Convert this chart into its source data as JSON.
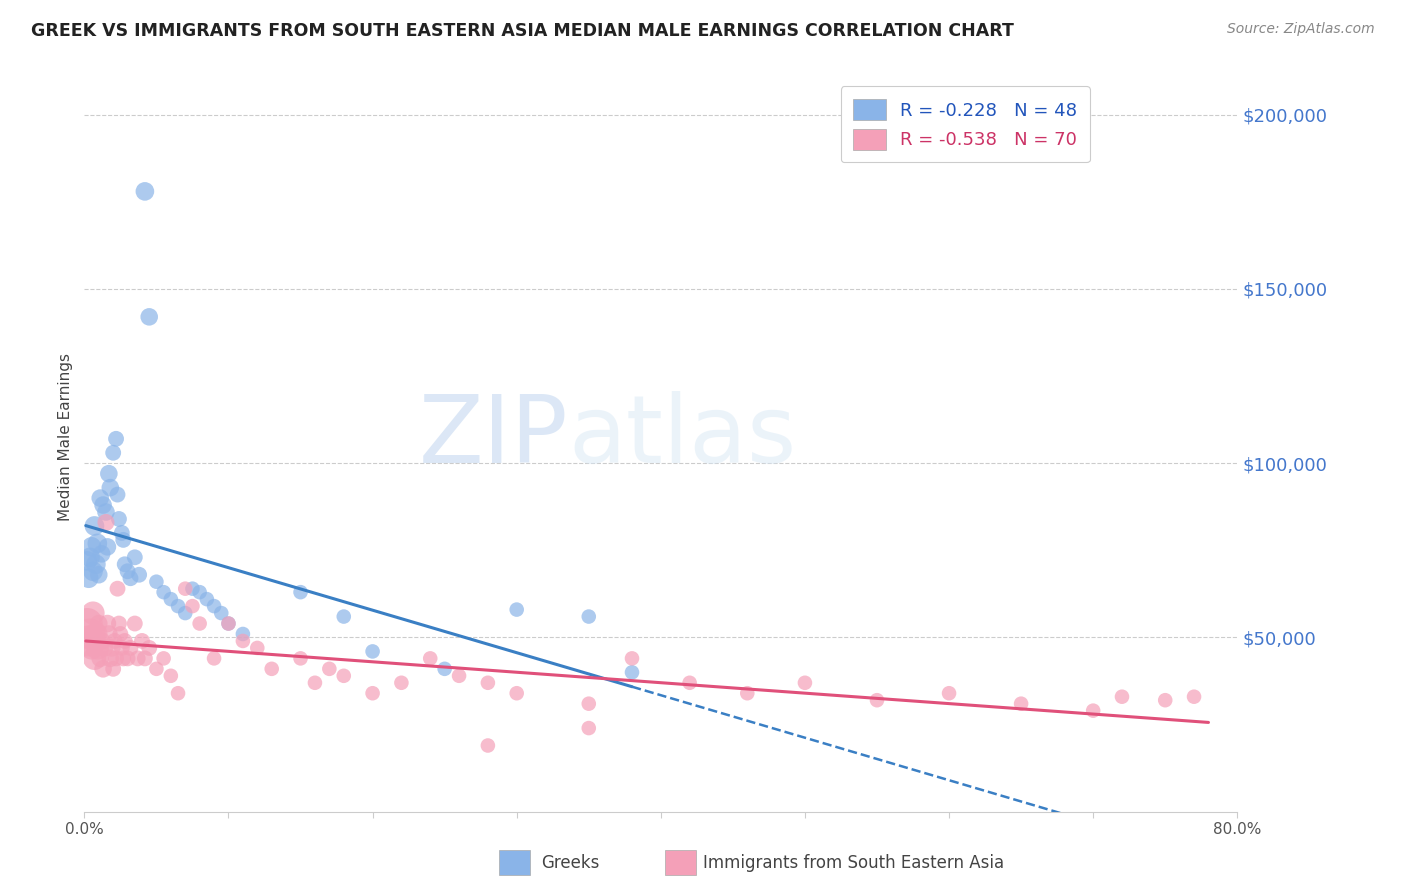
{
  "title": "GREEK VS IMMIGRANTS FROM SOUTH EASTERN ASIA MEDIAN MALE EARNINGS CORRELATION CHART",
  "source": "Source: ZipAtlas.com",
  "ylabel": "Median Male Earnings",
  "right_ytick_labels": [
    "$200,000",
    "$150,000",
    "$100,000",
    "$50,000"
  ],
  "right_ytick_values": [
    200000,
    150000,
    100000,
    50000
  ],
  "ylim": [
    0,
    215000
  ],
  "xlim": [
    0.0,
    0.8
  ],
  "legend_greek_R": "-0.228",
  "legend_greek_N": "48",
  "legend_sea_R": "-0.538",
  "legend_sea_N": "70",
  "greek_color": "#8ab4e8",
  "sea_color": "#f4a0b8",
  "greek_line_color": "#3a7fc4",
  "sea_line_color": "#e0507a",
  "background_color": "#ffffff",
  "greek_points": [
    [
      0.002,
      72000
    ],
    [
      0.003,
      67000
    ],
    [
      0.004,
      73000
    ],
    [
      0.005,
      76000
    ],
    [
      0.006,
      69000
    ],
    [
      0.007,
      82000
    ],
    [
      0.008,
      71000
    ],
    [
      0.009,
      77000
    ],
    [
      0.01,
      68000
    ],
    [
      0.011,
      90000
    ],
    [
      0.012,
      74000
    ],
    [
      0.013,
      88000
    ],
    [
      0.015,
      86000
    ],
    [
      0.016,
      76000
    ],
    [
      0.017,
      97000
    ],
    [
      0.018,
      93000
    ],
    [
      0.02,
      103000
    ],
    [
      0.022,
      107000
    ],
    [
      0.023,
      91000
    ],
    [
      0.024,
      84000
    ],
    [
      0.026,
      80000
    ],
    [
      0.027,
      78000
    ],
    [
      0.028,
      71000
    ],
    [
      0.03,
      69000
    ],
    [
      0.032,
      67000
    ],
    [
      0.035,
      73000
    ],
    [
      0.038,
      68000
    ],
    [
      0.042,
      178000
    ],
    [
      0.045,
      142000
    ],
    [
      0.05,
      66000
    ],
    [
      0.055,
      63000
    ],
    [
      0.06,
      61000
    ],
    [
      0.065,
      59000
    ],
    [
      0.07,
      57000
    ],
    [
      0.075,
      64000
    ],
    [
      0.08,
      63000
    ],
    [
      0.085,
      61000
    ],
    [
      0.09,
      59000
    ],
    [
      0.095,
      57000
    ],
    [
      0.1,
      54000
    ],
    [
      0.11,
      51000
    ],
    [
      0.15,
      63000
    ],
    [
      0.18,
      56000
    ],
    [
      0.2,
      46000
    ],
    [
      0.25,
      41000
    ],
    [
      0.3,
      58000
    ],
    [
      0.35,
      56000
    ],
    [
      0.38,
      40000
    ]
  ],
  "sea_points": [
    [
      0.002,
      54000
    ],
    [
      0.003,
      49000
    ],
    [
      0.004,
      51000
    ],
    [
      0.005,
      47000
    ],
    [
      0.006,
      57000
    ],
    [
      0.007,
      44000
    ],
    [
      0.008,
      51000
    ],
    [
      0.009,
      47000
    ],
    [
      0.01,
      54000
    ],
    [
      0.011,
      44000
    ],
    [
      0.012,
      49000
    ],
    [
      0.013,
      41000
    ],
    [
      0.014,
      47000
    ],
    [
      0.015,
      83000
    ],
    [
      0.016,
      54000
    ],
    [
      0.017,
      51000
    ],
    [
      0.018,
      44000
    ],
    [
      0.019,
      47000
    ],
    [
      0.02,
      41000
    ],
    [
      0.021,
      49000
    ],
    [
      0.022,
      44000
    ],
    [
      0.023,
      64000
    ],
    [
      0.024,
      54000
    ],
    [
      0.025,
      51000
    ],
    [
      0.026,
      47000
    ],
    [
      0.027,
      44000
    ],
    [
      0.028,
      49000
    ],
    [
      0.03,
      44000
    ],
    [
      0.032,
      47000
    ],
    [
      0.035,
      54000
    ],
    [
      0.037,
      44000
    ],
    [
      0.04,
      49000
    ],
    [
      0.042,
      44000
    ],
    [
      0.045,
      47000
    ],
    [
      0.05,
      41000
    ],
    [
      0.055,
      44000
    ],
    [
      0.06,
      39000
    ],
    [
      0.065,
      34000
    ],
    [
      0.07,
      64000
    ],
    [
      0.075,
      59000
    ],
    [
      0.08,
      54000
    ],
    [
      0.09,
      44000
    ],
    [
      0.1,
      54000
    ],
    [
      0.11,
      49000
    ],
    [
      0.12,
      47000
    ],
    [
      0.13,
      41000
    ],
    [
      0.15,
      44000
    ],
    [
      0.16,
      37000
    ],
    [
      0.17,
      41000
    ],
    [
      0.18,
      39000
    ],
    [
      0.2,
      34000
    ],
    [
      0.22,
      37000
    ],
    [
      0.24,
      44000
    ],
    [
      0.26,
      39000
    ],
    [
      0.28,
      37000
    ],
    [
      0.3,
      34000
    ],
    [
      0.35,
      31000
    ],
    [
      0.38,
      44000
    ],
    [
      0.42,
      37000
    ],
    [
      0.46,
      34000
    ],
    [
      0.5,
      37000
    ],
    [
      0.55,
      32000
    ],
    [
      0.6,
      34000
    ],
    [
      0.65,
      31000
    ],
    [
      0.7,
      29000
    ],
    [
      0.72,
      33000
    ],
    [
      0.75,
      32000
    ],
    [
      0.77,
      33000
    ],
    [
      0.35,
      24000
    ],
    [
      0.28,
      19000
    ]
  ],
  "greek_point_size": 120,
  "sea_point_size": 120,
  "greek_large_sizes": [
    380,
    320
  ],
  "sea_large_size": 480
}
